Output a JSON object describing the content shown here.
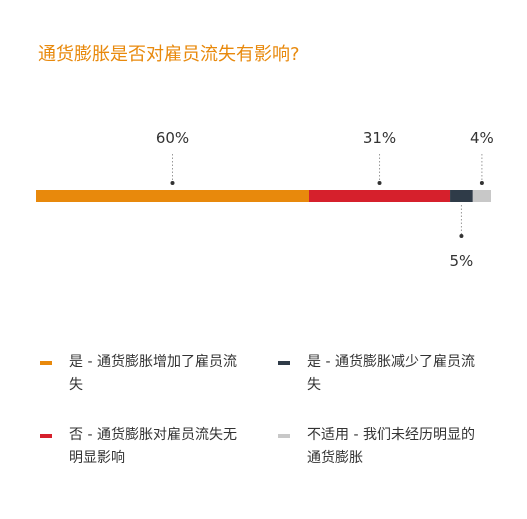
{
  "chart_data": {
    "type": "bar",
    "subtype": "stacked-100-horizontal",
    "title": "通货膨胀是否对雇员流失有影响?",
    "series": [
      {
        "name": "是 - 通货膨胀增加了雇员流失",
        "value": 60,
        "label": "60%",
        "color": "#E8890C",
        "label_side": "top"
      },
      {
        "name": "否 - 通货膨胀对雇员流失无明显影响",
        "value": 31,
        "label": "31%",
        "color": "#D6202C",
        "label_side": "top"
      },
      {
        "name": "是 - 通货膨胀减少了雇员流失",
        "value": 5,
        "label": "5%",
        "color": "#2F3B48",
        "label_side": "bottom"
      },
      {
        "name": "不适用 - 我们未经历明显的通货膨胀",
        "value": 4,
        "label": "4%",
        "color": "#C8C8C8",
        "label_side": "top"
      }
    ],
    "legend": {
      "placement": "bottom",
      "order": [
        0,
        2,
        1,
        3
      ]
    },
    "grid": false
  }
}
